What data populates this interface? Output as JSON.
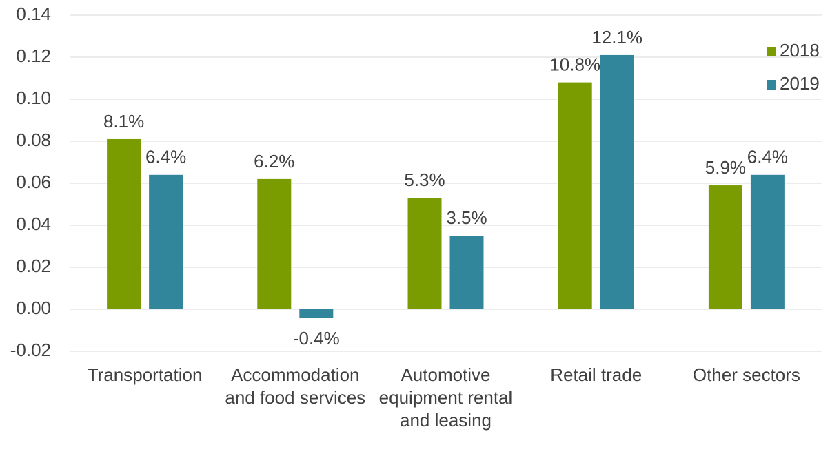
{
  "chart_data": {
    "type": "bar",
    "categories": [
      "Transportation",
      "Accommodation and food services",
      "Automotive equipment rental and leasing",
      "Retail trade",
      "Other sectors"
    ],
    "series": [
      {
        "name": "2018",
        "color": "#7a9c00",
        "values": [
          0.081,
          0.062,
          0.053,
          0.108,
          0.059
        ],
        "value_labels": [
          "8.1%",
          "6.2%",
          "5.3%",
          "10.8%",
          "5.9%"
        ]
      },
      {
        "name": "2019",
        "color": "#31869b",
        "values": [
          0.064,
          -0.004,
          0.035,
          0.121,
          0.064
        ],
        "value_labels": [
          "6.4%",
          "-0.4%",
          "3.5%",
          "12.1%",
          "6.4%"
        ]
      }
    ],
    "ylim": [
      -0.02,
      0.14
    ],
    "yticks": [
      -0.02,
      {
        "value": 0,
        "label": "0.00"
      },
      0.02,
      0.04,
      0.06,
      0.08,
      {
        "value": 0.1,
        "label": "0.10"
      },
      0.12,
      0.14
    ],
    "grid": true,
    "legend": "top-right"
  }
}
